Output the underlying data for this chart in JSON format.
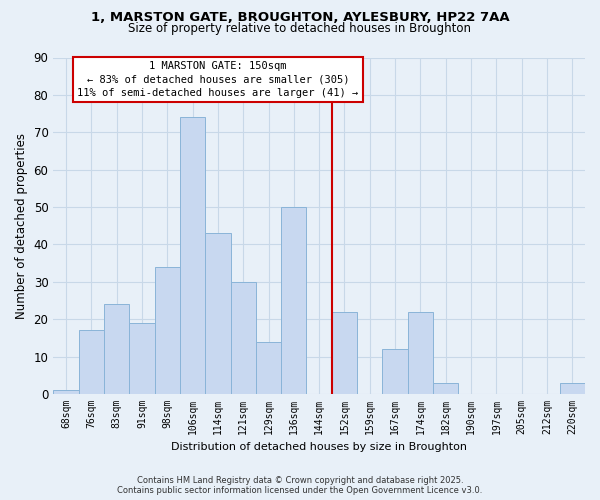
{
  "title_line1": "1, MARSTON GATE, BROUGHTON, AYLESBURY, HP22 7AA",
  "title_line2": "Size of property relative to detached houses in Broughton",
  "xlabel": "Distribution of detached houses by size in Broughton",
  "ylabel": "Number of detached properties",
  "bar_labels": [
    "68sqm",
    "76sqm",
    "83sqm",
    "91sqm",
    "98sqm",
    "106sqm",
    "114sqm",
    "121sqm",
    "129sqm",
    "136sqm",
    "144sqm",
    "152sqm",
    "159sqm",
    "167sqm",
    "174sqm",
    "182sqm",
    "190sqm",
    "197sqm",
    "205sqm",
    "212sqm",
    "220sqm"
  ],
  "bar_values": [
    1,
    17,
    24,
    19,
    34,
    74,
    43,
    30,
    14,
    50,
    0,
    22,
    0,
    12,
    22,
    3,
    0,
    0,
    0,
    0,
    3
  ],
  "bar_color": "#c8d8f0",
  "bar_edge_color": "#8ab4d8",
  "vline_index": 11,
  "vline_color": "#cc0000",
  "annotation_title": "1 MARSTON GATE: 150sqm",
  "annotation_line1": "← 83% of detached houses are smaller (305)",
  "annotation_line2": "11% of semi-detached houses are larger (41) →",
  "annotation_box_color": "#ffffff",
  "annotation_box_edge_color": "#cc0000",
  "ylim": [
    0,
    90
  ],
  "yticks": [
    0,
    10,
    20,
    30,
    40,
    50,
    60,
    70,
    80,
    90
  ],
  "grid_color": "#c8d8e8",
  "bg_color": "#e8f0f8",
  "footer_line1": "Contains HM Land Registry data © Crown copyright and database right 2025.",
  "footer_line2": "Contains public sector information licensed under the Open Government Licence v3.0."
}
